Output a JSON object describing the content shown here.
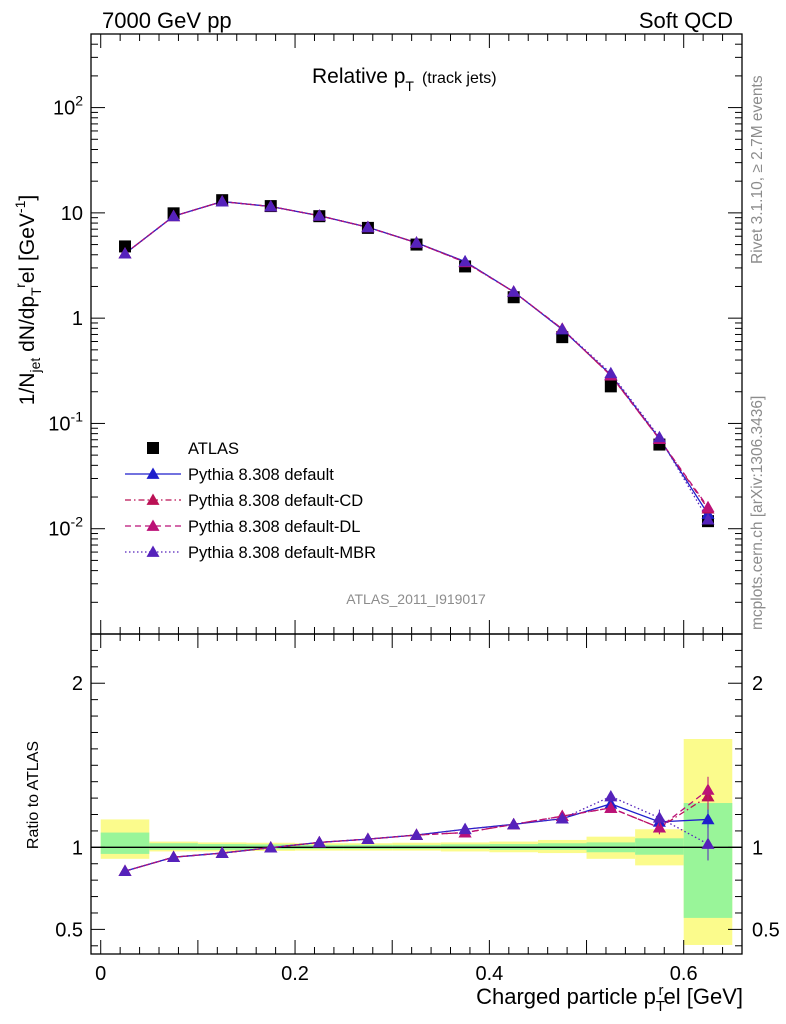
{
  "header": {
    "left": "7000 GeV pp",
    "right": "Soft QCD",
    "plot_title_main": "Relative p",
    "plot_title_sub": "T",
    "plot_title_extra": "(track jets)",
    "analysis_id": "ATLAS_2011_I919017",
    "side_label_top": "Rivet 3.1.10, ≥ 2.7M events",
    "side_label_bottom": "mcplots.cern.ch [arXiv:1306.3436]"
  },
  "chart_data": [
    {
      "type": "line",
      "panel": "main",
      "ylabel": "1/N_jet dN/dp_T^rel [GeV^-1]",
      "yscale": "log",
      "ylim": [
        0.001,
        500
      ],
      "xlim": [
        -0.01,
        0.66
      ],
      "y_tick_labels": [
        "10^-2",
        "10^-1",
        "1",
        "10",
        "10^2"
      ],
      "legend_position": "lower-left",
      "x": [
        0.025,
        0.075,
        0.125,
        0.175,
        0.225,
        0.275,
        0.325,
        0.375,
        0.425,
        0.475,
        0.525,
        0.575,
        0.625
      ],
      "series": [
        {
          "name": "ATLAS",
          "color": "#000000",
          "marker": "square",
          "values": [
            4.8,
            9.9,
            13.2,
            11.6,
            9.3,
            7.2,
            5.0,
            3.1,
            1.58,
            0.66,
            0.225,
            0.063,
            0.0118
          ]
        },
        {
          "name": "Pythia 8.308 default",
          "color": "#1f1fcc",
          "marker": "triangle",
          "dash": "solid",
          "values": [
            4.1,
            9.3,
            12.8,
            11.5,
            9.4,
            7.3,
            5.2,
            3.45,
            1.78,
            0.78,
            0.29,
            0.072,
            0.0138
          ]
        },
        {
          "name": "Pythia 8.308 default-CD",
          "color": "#bb1155",
          "marker": "triangle",
          "dash": "dashdot",
          "values": [
            4.1,
            9.3,
            12.8,
            11.5,
            9.4,
            7.3,
            5.2,
            3.4,
            1.78,
            0.79,
            0.285,
            0.071,
            0.0155
          ]
        },
        {
          "name": "Pythia 8.308 default-DL",
          "color": "#bb1177",
          "marker": "triangle",
          "dash": "dashed",
          "values": [
            4.1,
            9.3,
            12.8,
            11.5,
            9.4,
            7.3,
            5.2,
            3.4,
            1.78,
            0.79,
            0.285,
            0.071,
            0.016
          ]
        },
        {
          "name": "Pythia 8.308 default-MBR",
          "color": "#5522bb",
          "marker": "triangle",
          "dash": "dotted",
          "values": [
            4.1,
            9.3,
            12.8,
            11.5,
            9.4,
            7.3,
            5.2,
            3.45,
            1.78,
            0.785,
            0.3,
            0.074,
            0.0122
          ]
        }
      ]
    },
    {
      "type": "line",
      "panel": "ratio",
      "ylabel": "Ratio to ATLAS",
      "xlabel": "Charged particle p_T^rel [GeV]",
      "ylim": [
        0.35,
        2.3
      ],
      "xlim": [
        -0.01,
        0.66
      ],
      "y_tick_labels": [
        "0.5",
        "1",
        "2"
      ],
      "x_tick_labels": [
        "0",
        "0.2",
        "0.4",
        "0.6"
      ],
      "x_ticks": [
        0,
        0.2,
        0.4,
        0.6
      ],
      "y_ticks": [
        0.5,
        1,
        2
      ],
      "bands": {
        "x_edges": [
          0.0,
          0.05,
          0.1,
          0.15,
          0.2,
          0.25,
          0.3,
          0.35,
          0.4,
          0.45,
          0.5,
          0.55,
          0.6,
          0.65
        ],
        "inner_lo": [
          0.96,
          0.985,
          0.985,
          0.988,
          0.99,
          0.99,
          0.99,
          0.99,
          0.985,
          0.985,
          0.97,
          0.955,
          0.57
        ],
        "inner_hi": [
          1.09,
          1.025,
          1.02,
          1.018,
          1.015,
          1.015,
          1.015,
          1.018,
          1.02,
          1.025,
          1.03,
          1.055,
          1.27
        ],
        "outer_lo": [
          0.93,
          0.975,
          0.975,
          0.978,
          0.98,
          0.98,
          0.98,
          0.975,
          0.97,
          0.965,
          0.93,
          0.89,
          0.405
        ],
        "outer_hi": [
          1.17,
          1.035,
          1.03,
          1.028,
          1.025,
          1.025,
          1.028,
          1.03,
          1.035,
          1.045,
          1.065,
          1.11,
          1.66
        ],
        "inner_color": "#99f599",
        "outer_color": "#fbfb8c"
      },
      "series": [
        {
          "name": "Pythia 8.308 default",
          "color": "#1f1fcc",
          "dash": "solid",
          "values": [
            0.855,
            0.94,
            0.965,
            0.998,
            1.03,
            1.05,
            1.075,
            1.11,
            1.14,
            1.175,
            1.265,
            1.155,
            1.17
          ],
          "err": [
            0.008,
            0.008,
            0.006,
            0.006,
            0.006,
            0.006,
            0.006,
            0.008,
            0.01,
            0.012,
            0.02,
            0.04,
            0.07
          ]
        },
        {
          "name": "Pythia 8.308 default-CD",
          "color": "#bb1155",
          "dash": "dashdot",
          "values": [
            0.855,
            0.94,
            0.965,
            0.998,
            1.03,
            1.05,
            1.075,
            1.09,
            1.14,
            1.19,
            1.24,
            1.12,
            1.31
          ],
          "err": [
            0.008,
            0.008,
            0.006,
            0.006,
            0.006,
            0.006,
            0.006,
            0.008,
            0.01,
            0.012,
            0.02,
            0.04,
            0.08
          ]
        },
        {
          "name": "Pythia 8.308 default-DL",
          "color": "#bb1177",
          "dash": "dashed",
          "values": [
            0.855,
            0.94,
            0.965,
            0.998,
            1.03,
            1.05,
            1.075,
            1.09,
            1.14,
            1.19,
            1.24,
            1.12,
            1.35
          ],
          "err": [
            0.008,
            0.008,
            0.006,
            0.006,
            0.006,
            0.006,
            0.006,
            0.008,
            0.01,
            0.012,
            0.02,
            0.04,
            0.08
          ]
        },
        {
          "name": "Pythia 8.308 default-MBR",
          "color": "#5522bb",
          "dash": "dotted",
          "values": [
            0.855,
            0.94,
            0.965,
            0.998,
            1.03,
            1.05,
            1.075,
            1.11,
            1.14,
            1.175,
            1.31,
            1.18,
            1.02
          ],
          "err": [
            0.008,
            0.008,
            0.006,
            0.006,
            0.006,
            0.006,
            0.006,
            0.008,
            0.01,
            0.012,
            0.02,
            0.05,
            0.1
          ]
        }
      ]
    }
  ]
}
